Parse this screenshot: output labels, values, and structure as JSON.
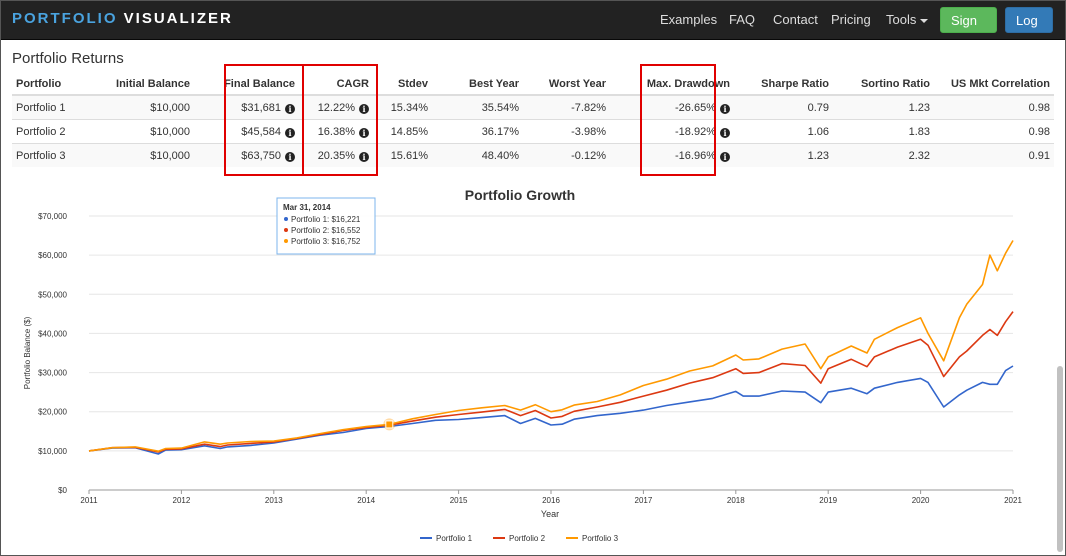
{
  "nav": {
    "brand_part1": "PORTFOLIO",
    "brand_part2": "VISUALIZER",
    "items": [
      "Examples",
      "FAQ",
      "Contact",
      "Pricing",
      "Tools"
    ],
    "signup": "Sign Up",
    "login": "Log In"
  },
  "returns": {
    "title": "Portfolio Returns",
    "columns": [
      "Portfolio",
      "Initial Balance",
      "Final Balance",
      "CAGR",
      "Stdev",
      "Best Year",
      "Worst Year",
      "Max. Drawdown",
      "Sharpe Ratio",
      "Sortino Ratio",
      "US Mkt Correlation"
    ],
    "rows": [
      [
        "Portfolio 1",
        "$10,000",
        "$31,681",
        "12.22%",
        "15.34%",
        "35.54%",
        "-7.82%",
        "-26.65%",
        "0.79",
        "1.23",
        "0.98"
      ],
      [
        "Portfolio 2",
        "$10,000",
        "$45,584",
        "16.38%",
        "14.85%",
        "36.17%",
        "-3.98%",
        "-18.92%",
        "1.06",
        "1.83",
        "0.98"
      ],
      [
        "Portfolio 3",
        "$10,000",
        "$63,750",
        "20.35%",
        "15.61%",
        "48.40%",
        "-0.12%",
        "-16.96%",
        "1.23",
        "2.32",
        "0.91"
      ]
    ]
  },
  "colors": {
    "p1": "#3366cc",
    "p2": "#dc3912",
    "p3": "#ff9900",
    "highlight": "#e00000"
  },
  "chart_data": {
    "type": "line",
    "title": "Portfolio Growth",
    "xlabel": "Year",
    "ylabel": "Portfolio Balance ($)",
    "ylim": [
      0,
      70000
    ],
    "xlim": [
      2011,
      2021
    ],
    "yticks": [
      0,
      10000,
      20000,
      30000,
      40000,
      50000,
      60000,
      70000
    ],
    "ytick_labels": [
      "$0",
      "$10,000",
      "$20,000",
      "$30,000",
      "$40,000",
      "$50,000",
      "$60,000",
      "$70,000"
    ],
    "xticks": [
      "2011",
      "2012",
      "2013",
      "2014",
      "2015",
      "2016",
      "2017",
      "2018",
      "2019",
      "2020",
      "2021"
    ],
    "x": [
      2011.0,
      2011.25,
      2011.5,
      2011.75,
      2011.83,
      2012.0,
      2012.25,
      2012.42,
      2012.5,
      2012.75,
      2013.0,
      2013.25,
      2013.5,
      2013.75,
      2014.0,
      2014.25,
      2014.5,
      2014.75,
      2015.0,
      2015.25,
      2015.5,
      2015.67,
      2015.83,
      2016.0,
      2016.12,
      2016.25,
      2016.5,
      2016.75,
      2017.0,
      2017.25,
      2017.5,
      2017.75,
      2018.0,
      2018.08,
      2018.25,
      2018.5,
      2018.75,
      2018.92,
      2019.0,
      2019.25,
      2019.42,
      2019.5,
      2019.75,
      2020.0,
      2020.08,
      2020.25,
      2020.42,
      2020.5,
      2020.67,
      2020.75,
      2020.83,
      2020.92,
      2021.0
    ],
    "series": [
      {
        "name": "Portfolio 1",
        "values": [
          10000,
          10700,
          10800,
          9200,
          10200,
          10300,
          11300,
          10600,
          11000,
          11400,
          12000,
          13000,
          14000,
          14700,
          15700,
          16221,
          17000,
          17800,
          18000,
          18500,
          19000,
          17000,
          18300,
          16600,
          16800,
          18100,
          19000,
          19600,
          20400,
          21600,
          22500,
          23400,
          25200,
          24000,
          24000,
          25300,
          25000,
          22300,
          25000,
          26000,
          24600,
          26000,
          27500,
          28500,
          27500,
          21200,
          24300,
          25500,
          27500,
          27000,
          27000,
          30500,
          31681
        ]
      },
      {
        "name": "Portfolio 2",
        "values": [
          10000,
          10800,
          10900,
          9700,
          10400,
          10500,
          11700,
          11100,
          11500,
          11900,
          12300,
          13200,
          14200,
          15200,
          16000,
          16552,
          17600,
          18600,
          19300,
          19900,
          20600,
          19000,
          20300,
          18400,
          18800,
          20100,
          21200,
          22400,
          24000,
          25500,
          27300,
          28700,
          31000,
          29800,
          30000,
          32300,
          31800,
          27300,
          31000,
          33400,
          31500,
          34000,
          36500,
          38500,
          37000,
          29000,
          34000,
          35500,
          39500,
          41000,
          39500,
          43000,
          45584
        ]
      },
      {
        "name": "Portfolio 3",
        "values": [
          10000,
          10800,
          11000,
          9900,
          10600,
          10700,
          12300,
          11700,
          12000,
          12400,
          12500,
          13300,
          14400,
          15400,
          16200,
          16752,
          18200,
          19300,
          20300,
          21000,
          21600,
          20400,
          21800,
          20000,
          20500,
          21700,
          22600,
          24300,
          26700,
          28300,
          30400,
          31700,
          34500,
          33200,
          33500,
          36000,
          37300,
          31000,
          34000,
          36800,
          35000,
          38500,
          41500,
          44000,
          40000,
          33000,
          44000,
          47500,
          52500,
          60000,
          56000,
          60500,
          63750
        ]
      }
    ],
    "legend": [
      "Portfolio 1",
      "Portfolio 2",
      "Portfolio 3"
    ],
    "legend_position": "bottom",
    "tooltip": {
      "date": "Mar 31, 2014",
      "lines": [
        "Portfolio 1: $16,221",
        "Portfolio 2: $16,552",
        "Portfolio 3: $16,752"
      ],
      "x": 2014.25,
      "y": 16752
    }
  }
}
